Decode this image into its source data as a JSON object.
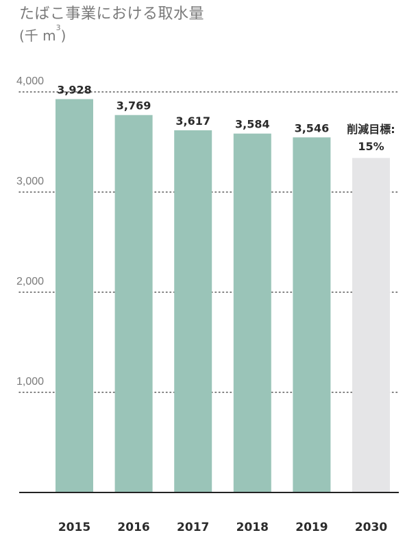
{
  "chart_data": {
    "type": "bar",
    "title": "たばこ事業における取水量",
    "unit_prefix": "(千 m",
    "unit_sup": "3",
    "unit_suffix": ")",
    "categories": [
      "2015",
      "2016",
      "2017",
      "2018",
      "2019",
      "2030"
    ],
    "values": [
      3928,
      3769,
      3617,
      3584,
      3546,
      3340
    ],
    "value_labels": [
      "3,928",
      "3,769",
      "3,617",
      "3,584",
      "3,546",
      ""
    ],
    "target_label": [
      "削減目標:",
      "15%"
    ],
    "yticks": [
      {
        "value": 1000,
        "label": "1,000"
      },
      {
        "value": 2000,
        "label": "2,000"
      },
      {
        "value": 3000,
        "label": "3,000"
      },
      {
        "value": 4000,
        "label": "4,000"
      }
    ],
    "ylim": [
      0,
      4000
    ],
    "grid": true,
    "colors": {
      "bar": "#9ac4b8",
      "target_bar": "#e5e5e7",
      "grid": "#555555",
      "axis": "#222222"
    }
  }
}
